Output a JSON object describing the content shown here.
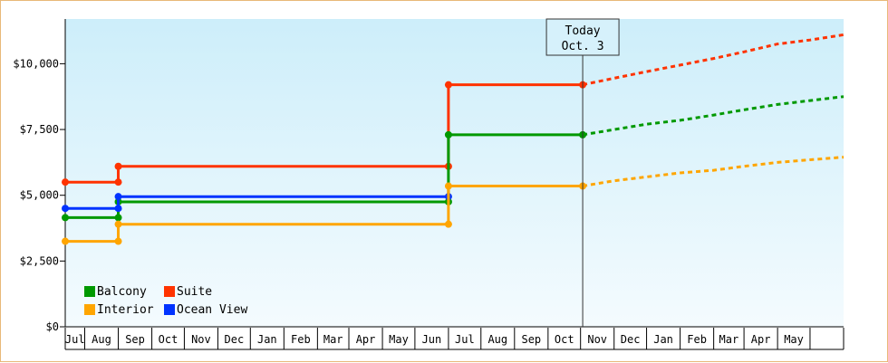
{
  "chart_data": {
    "type": "line",
    "title": "",
    "xlabel": "",
    "ylabel": "",
    "x_ticks": [
      "Jul",
      "Aug",
      "Sep",
      "Oct",
      "Nov",
      "Dec",
      "Jan",
      "Feb",
      "Mar",
      "Apr",
      "May",
      "Jun",
      "Jul",
      "Aug",
      "Sep",
      "Oct",
      "Nov",
      "Dec",
      "Jan",
      "Feb",
      "Mar",
      "Apr",
      "May"
    ],
    "xlim": [
      "2015-06-13",
      "2017-06-01"
    ],
    "ylim": [
      0,
      11700
    ],
    "y_ticks": [
      0,
      2500,
      5000,
      7500,
      10000
    ],
    "y_tick_labels": [
      "$0",
      "$2,500",
      "$5,000",
      "$7,500",
      "$10,000"
    ],
    "grid": false,
    "legend_position": "bottom-left",
    "today_marker": {
      "date": "2016-10-03",
      "line1": "Today",
      "line2": "Oct. 3"
    },
    "series": [
      {
        "name": "Suite",
        "color": "#ff3300",
        "points": [
          [
            "2015-06-13",
            5500
          ],
          [
            "2015-08-01",
            5500
          ],
          [
            "2015-08-01",
            6100
          ],
          [
            "2016-06-01",
            6100
          ],
          [
            "2016-06-01",
            9200
          ],
          [
            "2016-10-03",
            9200
          ]
        ],
        "markers": [
          [
            "2015-06-13",
            5500
          ],
          [
            "2015-08-01",
            5500
          ],
          [
            "2015-08-01",
            6100
          ],
          [
            "2016-06-01",
            6100
          ],
          [
            "2016-06-01",
            9200
          ],
          [
            "2016-10-03",
            9200
          ]
        ],
        "forecast": [
          [
            "2016-10-03",
            9200
          ],
          [
            "2016-11-01",
            9450
          ],
          [
            "2016-12-01",
            9700
          ],
          [
            "2017-01-01",
            9950
          ],
          [
            "2017-02-01",
            10200
          ],
          [
            "2017-03-01",
            10450
          ],
          [
            "2017-04-01",
            10750
          ],
          [
            "2017-05-01",
            10900
          ],
          [
            "2017-06-01",
            11100
          ]
        ]
      },
      {
        "name": "Balcony",
        "color": "#009900",
        "points": [
          [
            "2015-06-13",
            4150
          ],
          [
            "2015-08-01",
            4150
          ],
          [
            "2015-08-01",
            4750
          ],
          [
            "2016-06-01",
            4750
          ],
          [
            "2016-06-01",
            7300
          ],
          [
            "2016-10-03",
            7300
          ]
        ],
        "markers": [
          [
            "2015-06-13",
            4150
          ],
          [
            "2015-08-01",
            4150
          ],
          [
            "2015-08-01",
            4750
          ],
          [
            "2016-06-01",
            4750
          ],
          [
            "2016-06-01",
            7300
          ],
          [
            "2016-10-03",
            7300
          ]
        ],
        "forecast": [
          [
            "2016-10-03",
            7300
          ],
          [
            "2016-11-01",
            7500
          ],
          [
            "2016-12-01",
            7700
          ],
          [
            "2017-01-01",
            7850
          ],
          [
            "2017-02-01",
            8050
          ],
          [
            "2017-03-01",
            8250
          ],
          [
            "2017-04-01",
            8450
          ],
          [
            "2017-05-01",
            8600
          ],
          [
            "2017-06-01",
            8750
          ]
        ]
      },
      {
        "name": "Ocean View",
        "color": "#0033ff",
        "points": [
          [
            "2015-06-13",
            4500
          ],
          [
            "2015-08-01",
            4500
          ],
          [
            "2015-08-01",
            4950
          ],
          [
            "2016-06-01",
            4950
          ]
        ],
        "markers": [
          [
            "2015-06-13",
            4500
          ],
          [
            "2015-08-01",
            4500
          ],
          [
            "2015-08-01",
            4950
          ],
          [
            "2016-06-01",
            4950
          ]
        ],
        "forecast": []
      },
      {
        "name": "Interior",
        "color": "#ffa500",
        "points": [
          [
            "2015-06-13",
            3250
          ],
          [
            "2015-08-01",
            3250
          ],
          [
            "2015-08-01",
            3900
          ],
          [
            "2016-06-01",
            3900
          ],
          [
            "2016-06-01",
            5350
          ],
          [
            "2016-10-03",
            5350
          ]
        ],
        "markers": [
          [
            "2015-06-13",
            3250
          ],
          [
            "2015-08-01",
            3250
          ],
          [
            "2015-08-01",
            3900
          ],
          [
            "2016-06-01",
            3900
          ],
          [
            "2016-06-01",
            5350
          ],
          [
            "2016-10-03",
            5350
          ]
        ],
        "forecast": [
          [
            "2016-10-03",
            5350
          ],
          [
            "2016-11-01",
            5550
          ],
          [
            "2016-12-01",
            5700
          ],
          [
            "2017-01-01",
            5850
          ],
          [
            "2017-02-01",
            5950
          ],
          [
            "2017-03-01",
            6100
          ],
          [
            "2017-04-01",
            6250
          ],
          [
            "2017-05-01",
            6350
          ],
          [
            "2017-06-01",
            6450
          ]
        ]
      }
    ],
    "legend": [
      {
        "label": "Balcony",
        "color": "#009900"
      },
      {
        "label": "Suite",
        "color": "#ff3300"
      },
      {
        "label": "Interior",
        "color": "#ffa500"
      },
      {
        "label": "Ocean View",
        "color": "#0033ff"
      }
    ]
  }
}
